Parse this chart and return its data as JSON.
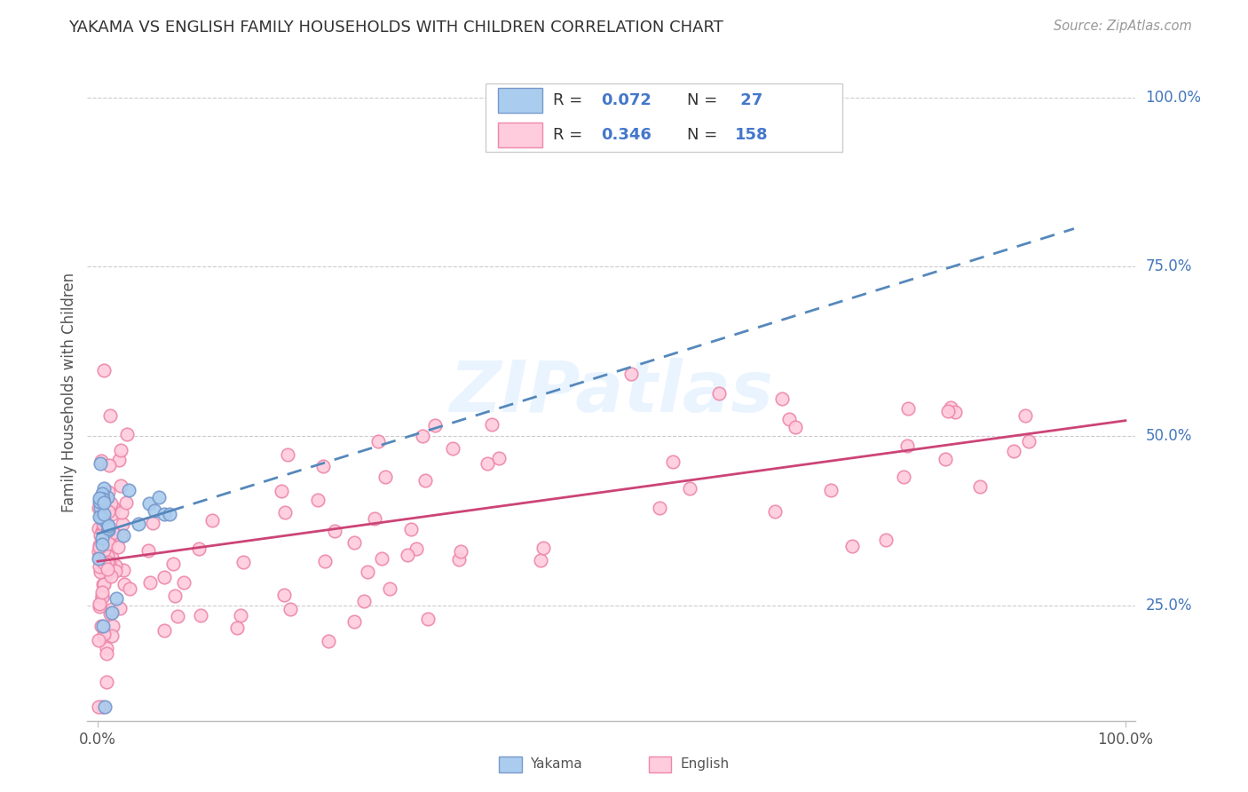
{
  "title": "YAKAMA VS ENGLISH FAMILY HOUSEHOLDS WITH CHILDREN CORRELATION CHART",
  "source": "Source: ZipAtlas.com",
  "ylabel": "Family Households with Children",
  "ytick_labels": [
    "25.0%",
    "50.0%",
    "75.0%",
    "100.0%"
  ],
  "ytick_values": [
    0.25,
    0.5,
    0.75,
    1.0
  ],
  "watermark": "ZIPatlas",
  "blue_color_fill": "#aaccee",
  "blue_color_edge": "#7799cc",
  "pink_color_fill": "#ffccdd",
  "pink_color_edge": "#ee88aa",
  "blue_line_color": "#5588bb",
  "pink_line_color": "#cc4477",
  "legend_r_color": "#000000",
  "legend_val_color": "#4477cc",
  "xlim": [
    -0.01,
    1.01
  ],
  "ylim": [
    0.08,
    1.05
  ],
  "grid_color": "#cccccc",
  "bottom_legend_items": [
    "Yakama",
    "English"
  ]
}
